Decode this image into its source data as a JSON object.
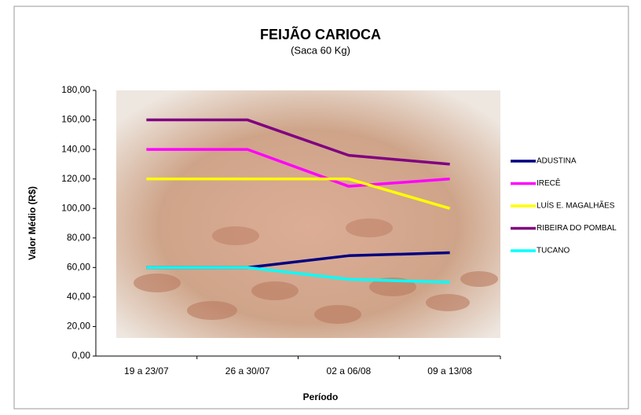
{
  "chart_data": {
    "type": "line",
    "title": "FEIJÃO CARIOCA",
    "subtitle": "(Saca 60 Kg)",
    "x_label": "Período",
    "y_label": "Valor Médio (R$)",
    "categories": [
      "19 a 23/07",
      "26 a 30/07",
      "02 a 06/08",
      "09 a 13/08"
    ],
    "series": [
      {
        "name": "ADUSTINA",
        "color": "#000080",
        "values": [
          60,
          60,
          68,
          70
        ]
      },
      {
        "name": "IRECÊ",
        "color": "#ff00ff",
        "values": [
          140,
          140,
          115,
          120
        ]
      },
      {
        "name": "LUÍS E. MAGALHÃES",
        "color": "#ffff00",
        "values": [
          120,
          120,
          120,
          100
        ]
      },
      {
        "name": "RIBEIRA DO POMBAL",
        "color": "#800080",
        "values": [
          160,
          160,
          136,
          130
        ]
      },
      {
        "name": "TUCANO",
        "color": "#00ffff",
        "values": [
          60,
          60,
          52,
          50
        ]
      }
    ],
    "ylim": [
      0,
      180
    ],
    "yticks": [
      {
        "value": 0,
        "label": "0,00"
      },
      {
        "value": 20,
        "label": "20,00"
      },
      {
        "value": 40,
        "label": "40,00"
      },
      {
        "value": 60,
        "label": "60,00"
      },
      {
        "value": 80,
        "label": "80,00"
      },
      {
        "value": 100,
        "label": "100,00"
      },
      {
        "value": 120,
        "label": "120,00"
      },
      {
        "value": 140,
        "label": "140,00"
      },
      {
        "value": 160,
        "label": "160,00"
      },
      {
        "value": 180,
        "label": "180,00"
      }
    ],
    "legend": "right"
  }
}
